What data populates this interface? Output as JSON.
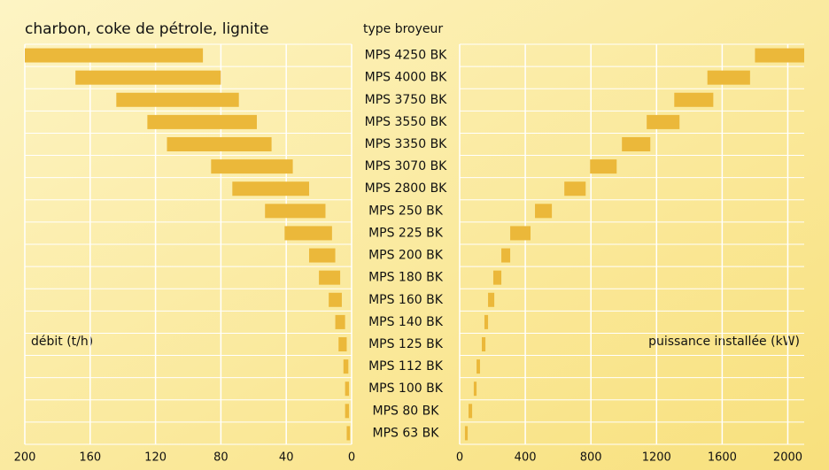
{
  "chart_data": {
    "type": "butterfly-range-bar",
    "title": "charbon, coke de pétrole, lignite",
    "category_label": "type broyeur",
    "categories": [
      "MPS 4250 BK",
      "MPS 4000 BK",
      "MPS 3750 BK",
      "MPS 3550 BK",
      "MPS 3350 BK",
      "MPS 3070 BK",
      "MPS 2800 BK",
      "MPS 250 BK",
      "MPS 225 BK",
      "MPS 200 BK",
      "MPS 180 BK",
      "MPS 160 BK",
      "MPS 140 BK",
      "MPS 125 BK",
      "MPS 112 BK",
      "MPS 100 BK",
      "MPS 80 BK",
      "MPS 63 BK"
    ],
    "series": [
      {
        "name": "débit (t/h)",
        "color": "#ebb83a",
        "values": [
          [
            91,
            200
          ],
          [
            80,
            169
          ],
          [
            69,
            144
          ],
          [
            58,
            125
          ],
          [
            49,
            113
          ],
          [
            36,
            86
          ],
          [
            26,
            73
          ],
          [
            16,
            53
          ],
          [
            12,
            41
          ],
          [
            10,
            26
          ],
          [
            7,
            20
          ],
          [
            6,
            14
          ],
          [
            4,
            10
          ],
          [
            3,
            8
          ],
          [
            2,
            5
          ],
          [
            1.6,
            4
          ],
          [
            1.6,
            4
          ],
          [
            1,
            3
          ]
        ]
      },
      {
        "name": "puissance installée (kW)",
        "color": "#ebb83a",
        "axis": "y2",
        "values": [
          [
            1800,
            2100
          ],
          [
            1510,
            1770
          ],
          [
            1308,
            1546
          ],
          [
            1140,
            1340
          ],
          [
            989,
            1162
          ],
          [
            795,
            957
          ],
          [
            638,
            768
          ],
          [
            459,
            562
          ],
          [
            308,
            432
          ],
          [
            254,
            308
          ],
          [
            205,
            254
          ],
          [
            173,
            211
          ],
          [
            151,
            173
          ],
          [
            135,
            157
          ],
          [
            103,
            124
          ],
          [
            86,
            103
          ],
          [
            54,
            76
          ],
          [
            32,
            49
          ]
        ]
      }
    ],
    "ylim": [
      0,
      200
    ],
    "yticks": [
      200,
      160,
      120,
      80,
      40,
      0
    ],
    "y2lim": [
      0,
      2100
    ],
    "y2ticks": [
      0,
      400,
      800,
      1200,
      1600,
      2000
    ],
    "grid": true
  }
}
